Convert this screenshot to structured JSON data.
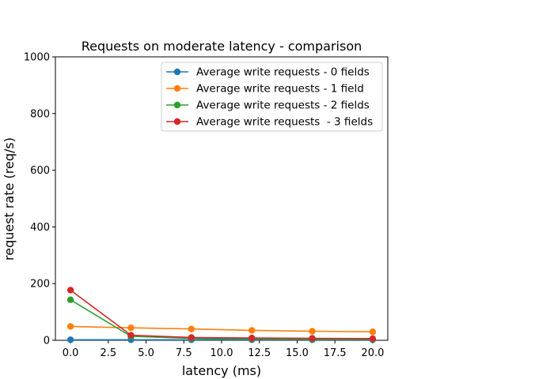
{
  "chart_data": {
    "type": "line",
    "title": "Requests on moderate latency - comparison",
    "xlabel": "latency (ms)",
    "ylabel": "request rate (req/s)",
    "xlim": [
      -1,
      21
    ],
    "ylim": [
      0,
      1000
    ],
    "xticks": [
      0.0,
      2.5,
      5.0,
      7.5,
      10.0,
      12.5,
      15.0,
      17.5,
      20.0
    ],
    "xtick_labels": [
      "0.0",
      "2.5",
      "5.0",
      "7.5",
      "10.0",
      "12.5",
      "15.0",
      "17.5",
      "20.0"
    ],
    "yticks": [
      0,
      200,
      400,
      600,
      800,
      1000
    ],
    "ytick_labels": [
      "0",
      "200",
      "400",
      "600",
      "800",
      "1000"
    ],
    "x": [
      0,
      4,
      8,
      12,
      16,
      20
    ],
    "grid": false,
    "legend_position": "top-right",
    "series": [
      {
        "name": "Average write requests - 0 fields",
        "color": "#1f77b4",
        "values": [
          2,
          2,
          2,
          2,
          2,
          2
        ]
      },
      {
        "name": "Average write requests - 1 field",
        "color": "#ff7f0e",
        "values": [
          49,
          44,
          40,
          35,
          32,
          30
        ]
      },
      {
        "name": "Average write requests - 2 fields",
        "color": "#2ca02c",
        "values": [
          143,
          14,
          7,
          5,
          4,
          4
        ]
      },
      {
        "name": "Average write requests  - 3 fields",
        "color": "#d62728",
        "values": [
          177,
          18,
          10,
          8,
          7,
          6
        ]
      }
    ]
  }
}
